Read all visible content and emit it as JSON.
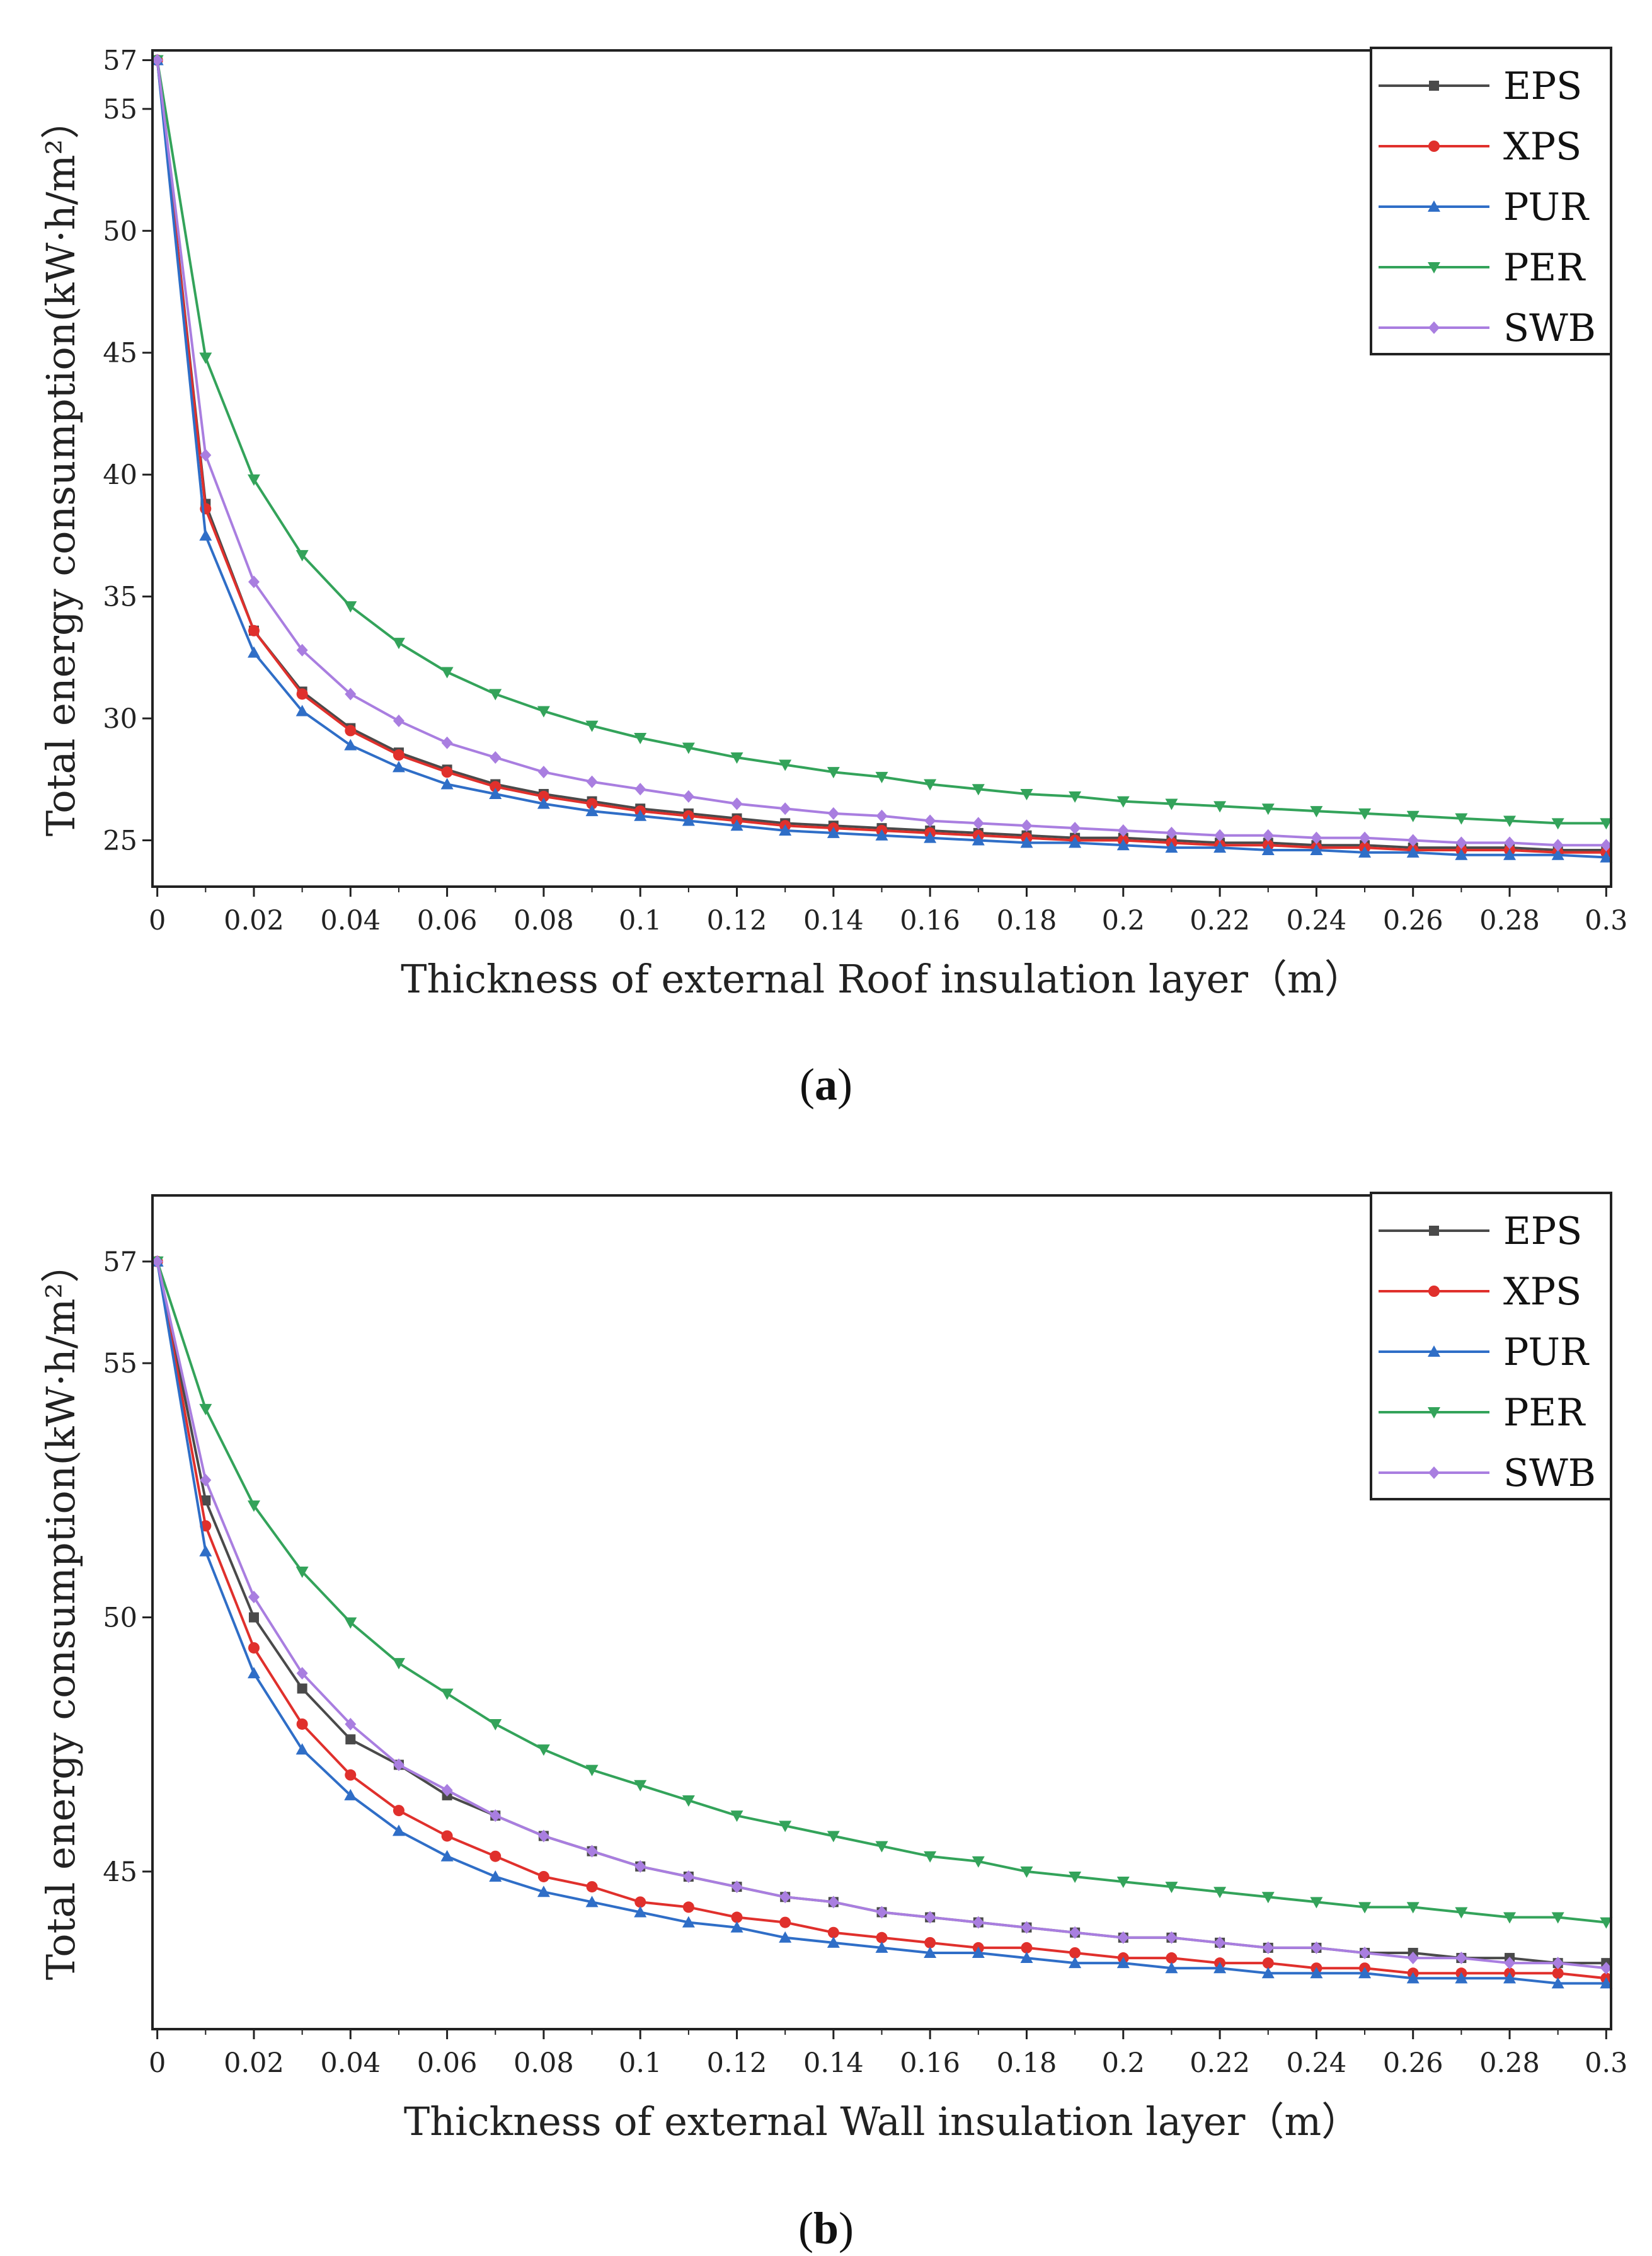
{
  "panels": [
    {
      "caption_open": "(",
      "caption_letter": "a",
      "caption_close": ")",
      "legend_entries": [
        "EPS",
        "XPS",
        "PUR",
        "PER",
        "SWB"
      ]
    },
    {
      "caption_open": "(",
      "caption_letter": "b",
      "caption_close": ")",
      "legend_entries": [
        "EPS",
        "XPS",
        "PUR",
        "PER",
        "SWB"
      ]
    }
  ],
  "series_style": {
    "EPS": {
      "color": "#4a4a4a",
      "marker": "square"
    },
    "XPS": {
      "color": "#e0302c",
      "marker": "circle"
    },
    "PUR": {
      "color": "#2f6ec7",
      "marker": "triangle-up"
    },
    "PER": {
      "color": "#33a35a",
      "marker": "triangle-down"
    },
    "SWB": {
      "color": "#a97ee0",
      "marker": "diamond"
    }
  },
  "chart_data": [
    {
      "type": "line",
      "title": "",
      "xlabel": "Thickness of external Roof insulation layer（m）",
      "ylabel": "Total energy consumption(kW·h/m²）",
      "x": [
        0,
        0.01,
        0.02,
        0.03,
        0.04,
        0.05,
        0.06,
        0.07,
        0.08,
        0.09,
        0.1,
        0.11,
        0.12,
        0.13,
        0.14,
        0.15,
        0.16,
        0.17,
        0.18,
        0.19,
        0.2,
        0.21,
        0.22,
        0.23,
        0.24,
        0.25,
        0.26,
        0.27,
        0.28,
        0.29,
        0.3
      ],
      "xticks": [
        0,
        0.02,
        0.04,
        0.06,
        0.08,
        0.1,
        0.12,
        0.14,
        0.16,
        0.18,
        0.2,
        0.22,
        0.24,
        0.26,
        0.28,
        0.3
      ],
      "xtick_labels": [
        "0",
        "0.02",
        "0.04",
        "0.06",
        "0.08",
        "0.1",
        "0.12",
        "0.14",
        "0.16",
        "0.18",
        "0.2",
        "0.22",
        "0.24",
        "0.26",
        "0.28",
        "0.3"
      ],
      "yticks": [
        25,
        30,
        35,
        40,
        45,
        50,
        55,
        57
      ],
      "ytick_labels": [
        "25",
        "30",
        "35",
        "40",
        "45",
        "50",
        "55",
        "57"
      ],
      "xlim": [
        -0.001,
        0.301
      ],
      "ylim": [
        23.1,
        57.4
      ],
      "legend_position": "top-right",
      "series": [
        {
          "name": "EPS",
          "values": [
            57,
            38.8,
            33.6,
            31.1,
            29.6,
            28.6,
            27.9,
            27.3,
            26.9,
            26.6,
            26.3,
            26.1,
            25.9,
            25.7,
            25.6,
            25.5,
            25.4,
            25.3,
            25.2,
            25.1,
            25.1,
            25.0,
            24.9,
            24.9,
            24.8,
            24.8,
            24.7,
            24.7,
            24.7,
            24.6,
            24.6
          ]
        },
        {
          "name": "XPS",
          "values": [
            57,
            38.6,
            33.6,
            31.0,
            29.5,
            28.5,
            27.8,
            27.2,
            26.8,
            26.5,
            26.2,
            26.0,
            25.8,
            25.6,
            25.5,
            25.4,
            25.3,
            25.2,
            25.1,
            25.0,
            25.0,
            24.9,
            24.8,
            24.8,
            24.7,
            24.7,
            24.6,
            24.6,
            24.6,
            24.5,
            24.5
          ]
        },
        {
          "name": "PUR",
          "values": [
            57,
            37.5,
            32.7,
            30.3,
            28.9,
            28.0,
            27.3,
            26.9,
            26.5,
            26.2,
            26.0,
            25.8,
            25.6,
            25.4,
            25.3,
            25.2,
            25.1,
            25.0,
            24.9,
            24.9,
            24.8,
            24.7,
            24.7,
            24.6,
            24.6,
            24.5,
            24.5,
            24.4,
            24.4,
            24.4,
            24.3
          ]
        },
        {
          "name": "PER",
          "values": [
            57,
            44.8,
            39.8,
            36.7,
            34.6,
            33.1,
            31.9,
            31.0,
            30.3,
            29.7,
            29.2,
            28.8,
            28.4,
            28.1,
            27.8,
            27.6,
            27.3,
            27.1,
            26.9,
            26.8,
            26.6,
            26.5,
            26.4,
            26.3,
            26.2,
            26.1,
            26.0,
            25.9,
            25.8,
            25.7,
            25.7
          ]
        },
        {
          "name": "SWB",
          "values": [
            57,
            40.8,
            35.6,
            32.8,
            31.0,
            29.9,
            29.0,
            28.4,
            27.8,
            27.4,
            27.1,
            26.8,
            26.5,
            26.3,
            26.1,
            26.0,
            25.8,
            25.7,
            25.6,
            25.5,
            25.4,
            25.3,
            25.2,
            25.2,
            25.1,
            25.1,
            25.0,
            24.9,
            24.9,
            24.8,
            24.8
          ]
        }
      ]
    },
    {
      "type": "line",
      "title": "",
      "xlabel": "Thickness of external Wall insulation layer（m）",
      "ylabel": "Total energy consumption(kW·h/m²）",
      "x": [
        0,
        0.01,
        0.02,
        0.03,
        0.04,
        0.05,
        0.06,
        0.07,
        0.08,
        0.09,
        0.1,
        0.11,
        0.12,
        0.13,
        0.14,
        0.15,
        0.16,
        0.17,
        0.18,
        0.19,
        0.2,
        0.21,
        0.22,
        0.23,
        0.24,
        0.25,
        0.26,
        0.27,
        0.28,
        0.29,
        0.3
      ],
      "xticks": [
        0,
        0.02,
        0.04,
        0.06,
        0.08,
        0.1,
        0.12,
        0.14,
        0.16,
        0.18,
        0.2,
        0.22,
        0.24,
        0.26,
        0.28,
        0.3
      ],
      "xtick_labels": [
        "0",
        "0.02",
        "0.04",
        "0.06",
        "0.08",
        "0.1",
        "0.12",
        "0.14",
        "0.16",
        "0.18",
        "0.2",
        "0.22",
        "0.24",
        "0.26",
        "0.28",
        "0.3"
      ],
      "yticks": [
        45,
        50,
        55,
        57
      ],
      "ytick_labels": [
        "45",
        "50",
        "55",
        "57"
      ],
      "xlim": [
        -0.001,
        0.301
      ],
      "ylim": [
        41.9,
        58.3
      ],
      "legend_position": "top-right",
      "series": [
        {
          "name": "EPS",
          "values": [
            57,
            52.3,
            50.0,
            48.6,
            47.6,
            47.1,
            46.5,
            46.1,
            45.7,
            45.4,
            45.1,
            44.9,
            44.7,
            44.5,
            44.4,
            44.2,
            44.1,
            44.0,
            43.9,
            43.8,
            43.7,
            43.7,
            43.6,
            43.5,
            43.5,
            43.4,
            43.4,
            43.3,
            43.3,
            43.2,
            43.2
          ]
        },
        {
          "name": "XPS",
          "values": [
            57,
            51.8,
            49.4,
            47.9,
            46.9,
            46.2,
            45.7,
            45.3,
            44.9,
            44.7,
            44.4,
            44.3,
            44.1,
            44.0,
            43.8,
            43.7,
            43.6,
            43.5,
            43.5,
            43.4,
            43.3,
            43.3,
            43.2,
            43.2,
            43.1,
            43.1,
            43.0,
            43.0,
            43.0,
            43.0,
            42.9
          ]
        },
        {
          "name": "PUR",
          "values": [
            57,
            51.3,
            48.9,
            47.4,
            46.5,
            45.8,
            45.3,
            44.9,
            44.6,
            44.4,
            44.2,
            44.0,
            43.9,
            43.7,
            43.6,
            43.5,
            43.4,
            43.4,
            43.3,
            43.2,
            43.2,
            43.1,
            43.1,
            43.0,
            43.0,
            43.0,
            42.9,
            42.9,
            42.9,
            42.8,
            42.8
          ]
        },
        {
          "name": "PER",
          "values": [
            57,
            54.1,
            52.2,
            50.9,
            49.9,
            49.1,
            48.5,
            47.9,
            47.4,
            47.0,
            46.7,
            46.4,
            46.1,
            45.9,
            45.7,
            45.5,
            45.3,
            45.2,
            45.0,
            44.9,
            44.8,
            44.7,
            44.6,
            44.5,
            44.4,
            44.3,
            44.3,
            44.2,
            44.1,
            44.1,
            44.0
          ]
        },
        {
          "name": "SWB",
          "values": [
            57,
            52.7,
            50.4,
            48.9,
            47.9,
            47.1,
            46.6,
            46.1,
            45.7,
            45.4,
            45.1,
            44.9,
            44.7,
            44.5,
            44.4,
            44.2,
            44.1,
            44.0,
            43.9,
            43.8,
            43.7,
            43.7,
            43.6,
            43.5,
            43.5,
            43.4,
            43.3,
            43.3,
            43.2,
            43.2,
            43.1
          ]
        }
      ]
    }
  ]
}
